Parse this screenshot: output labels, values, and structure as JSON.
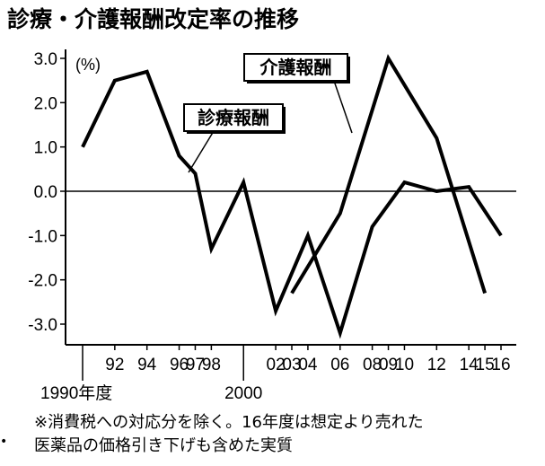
{
  "title": "診療・介護報酬改定率の推移",
  "note_lines": [
    "※消費税への対応分を除く。16年度は想定より売れた",
    "医薬品の価格引き下げも含めた実質"
  ],
  "chart_data": {
    "type": "line",
    "ylabel": "(%)",
    "ylim": [
      -3.4,
      3.1
    ],
    "yticks": [
      3.0,
      2.0,
      1.0,
      0.0,
      -1.0,
      -2.0,
      -3.0
    ],
    "ytick_labels": [
      "3.0",
      "2.0",
      "1.0",
      "0.0",
      "-1.0",
      "-2.0",
      "-3.0"
    ],
    "xlim": [
      1989.5,
      2016.5
    ],
    "xticks": [
      1990,
      1992,
      1994,
      1996,
      1997,
      1998,
      2000,
      2002,
      2003,
      2004,
      2006,
      2008,
      2009,
      2010,
      2012,
      2014,
      2015,
      2016
    ],
    "xtick_labels": [
      "1990年度",
      "92",
      "94",
      "96",
      "97",
      "98",
      "2000",
      "02",
      "03",
      "04",
      "06",
      "08",
      "09",
      "10",
      "12",
      "14",
      "15",
      "16"
    ],
    "series": [
      {
        "name": "診療報酬",
        "x": [
          1990,
          1992,
          1994,
          1996,
          1997,
          1998,
          2000,
          2002,
          2004,
          2006,
          2008,
          2010,
          2012,
          2014,
          2016
        ],
        "values": [
          1.0,
          2.5,
          2.7,
          0.8,
          0.4,
          -1.3,
          0.2,
          -2.7,
          -1.0,
          -3.2,
          -0.8,
          0.2,
          0.0,
          0.1,
          -1.0
        ]
      },
      {
        "name": "介護報酬",
        "x": [
          2003,
          2006,
          2009,
          2012,
          2015
        ],
        "values": [
          -2.3,
          -0.5,
          3.0,
          1.2,
          -2.3
        ]
      }
    ],
    "annotations": [
      {
        "text": "介護報酬",
        "series": "介護報酬"
      },
      {
        "text": "診療報酬",
        "series": "診療報酬"
      }
    ],
    "zero_line": true
  }
}
